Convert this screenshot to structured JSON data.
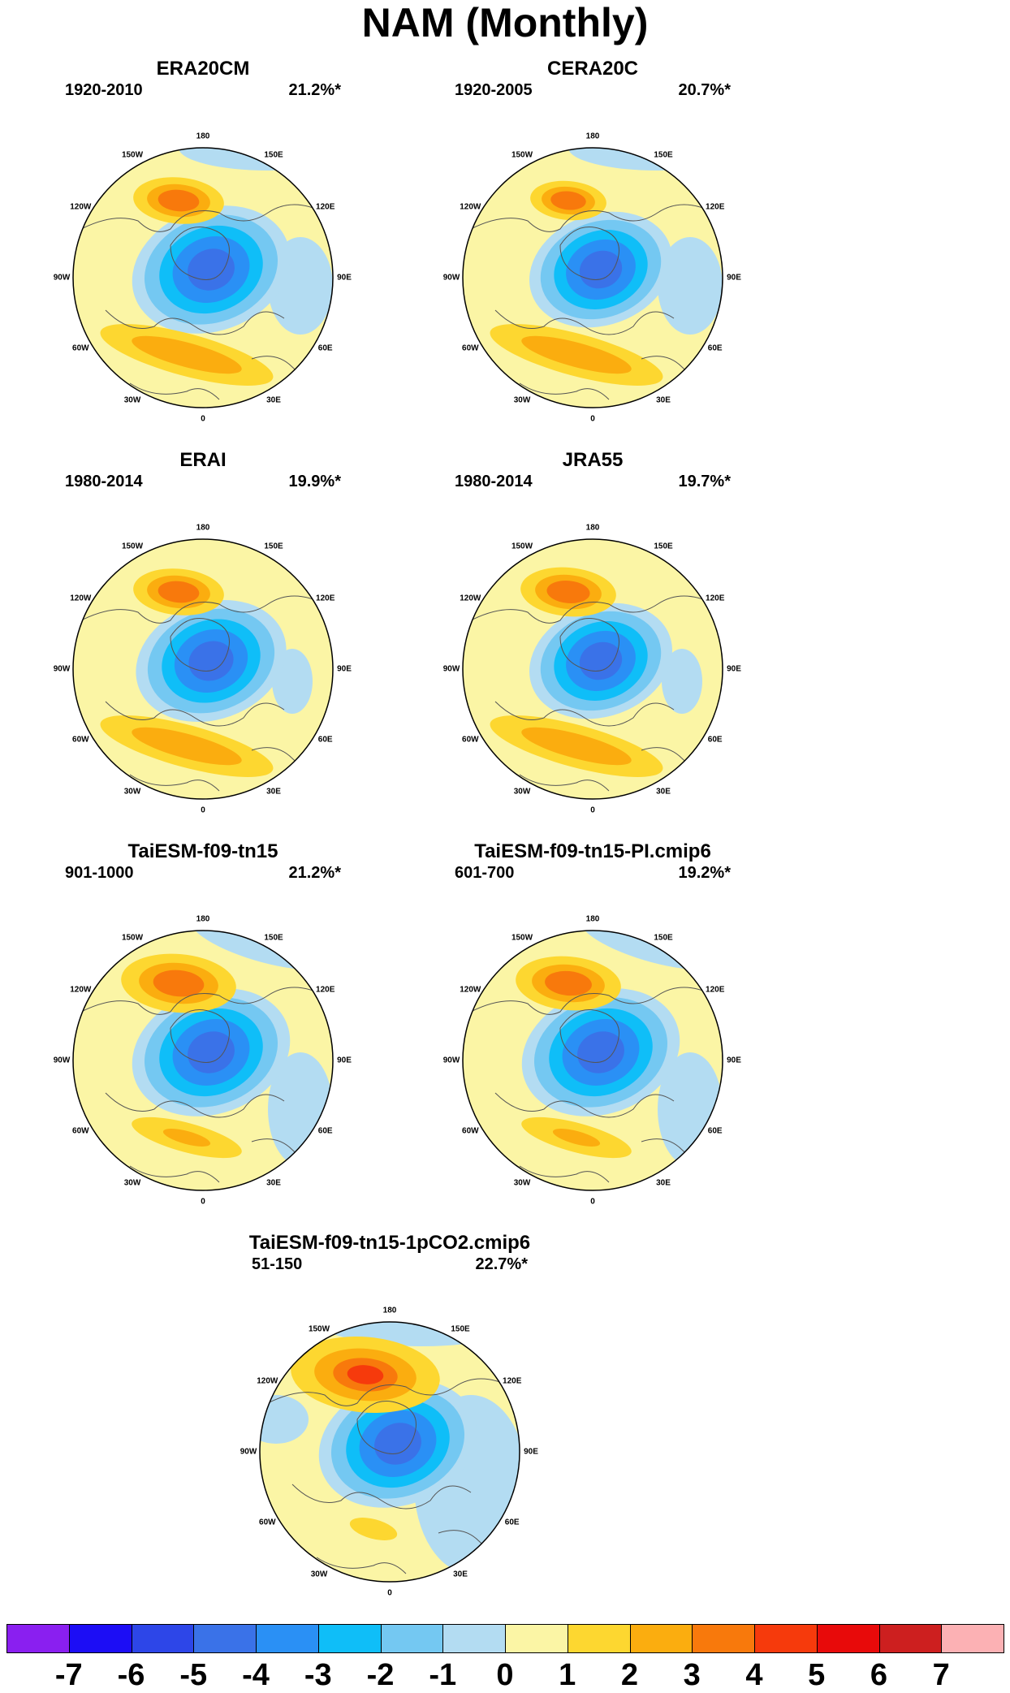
{
  "title": "NAM (Monthly)",
  "panels": [
    {
      "name": "ERA20CM",
      "period": "1920-2010",
      "variance": "21.2%*",
      "pos": "r1c1",
      "style": {
        "s": 1.05,
        "pos_s": 0.85,
        "ext": "a"
      }
    },
    {
      "name": "CERA20C",
      "period": "1920-2005",
      "variance": "20.7%*",
      "pos": "r1c2",
      "style": {
        "s": 0.95,
        "pos_s": 0.7,
        "ext": "a"
      }
    },
    {
      "name": "ERAI",
      "period": "1980-2014",
      "variance": "19.9%*",
      "pos": "r2c1",
      "style": {
        "s": 1.0,
        "pos_s": 0.85,
        "ext": "b"
      }
    },
    {
      "name": "JRA55",
      "period": "1980-2014",
      "variance": "19.7%*",
      "pos": "r2c2",
      "style": {
        "s": 0.95,
        "pos_s": 0.9,
        "ext": "b"
      }
    },
    {
      "name": "TaiESM-f09-tn15",
      "period": "901-1000",
      "variance": "21.2%*",
      "pos": "r3c1",
      "style": {
        "s": 1.05,
        "pos_s": 1.1,
        "ext": "c"
      }
    },
    {
      "name": "TaiESM-f09-tn15-PI.cmip6",
      "period": "601-700",
      "variance": "19.2%*",
      "pos": "r3c2",
      "style": {
        "s": 1.05,
        "pos_s": 1.0,
        "ext": "c"
      }
    },
    {
      "name": "TaiESM-f09-tn15-1pCO2.cmip6",
      "period": "51-150",
      "variance": "22.7%*",
      "pos": "r4",
      "style": {
        "s": 1.05,
        "pos_s": 1.45,
        "ext": "d"
      }
    }
  ],
  "longitude_labels": [
    "180",
    "150E",
    "120E",
    "90E",
    "60E",
    "30E",
    "0",
    "30W",
    "60W",
    "90W",
    "120W",
    "150W"
  ],
  "colorbar": {
    "labels": [
      "-7",
      "-6",
      "-5",
      "-4",
      "-3",
      "-2",
      "-1",
      "0",
      "1",
      "2",
      "3",
      "4",
      "5",
      "6",
      "7"
    ],
    "colors": [
      "#8a1ff0",
      "#1c0df5",
      "#2d46e8",
      "#3a72e8",
      "#2a90f5",
      "#0fbef8",
      "#74c8f2",
      "#b3dcf2",
      "#fbf5a5",
      "#fdd730",
      "#fbad0f",
      "#f8790c",
      "#f63a0c",
      "#e80a0a",
      "#cd1f1f",
      "#fcb1b4"
    ]
  }
}
